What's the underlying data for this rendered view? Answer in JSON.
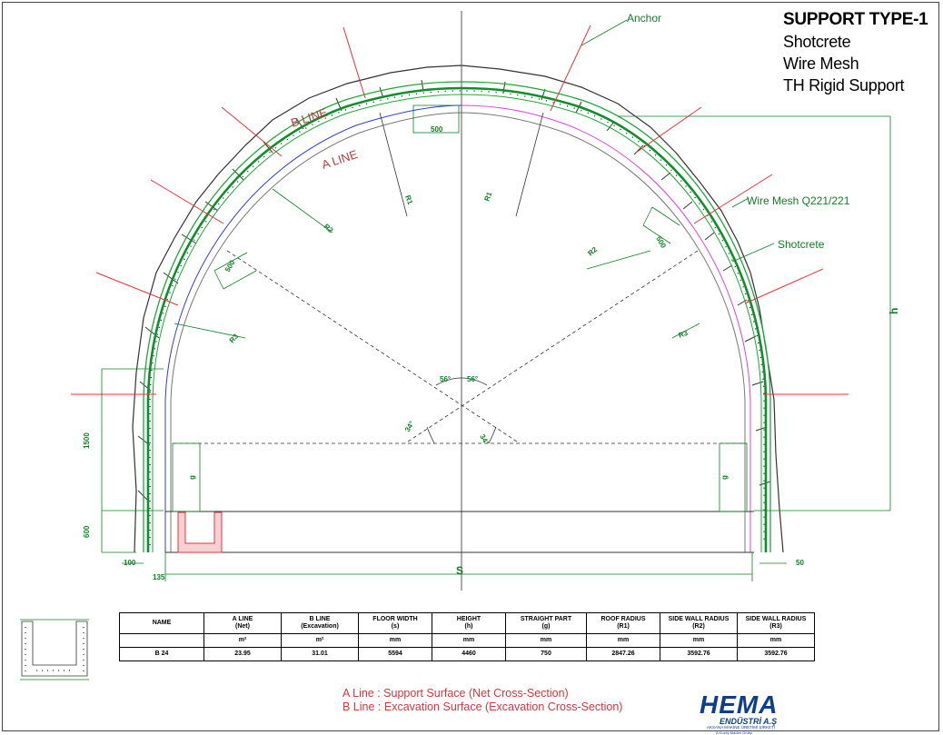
{
  "title": {
    "main": "SUPPORT TYPE-1",
    "lines": [
      "Shotcrete",
      "Wire Mesh",
      "TH Rigid Support"
    ]
  },
  "labels": {
    "anchor": "Anchor",
    "wire_mesh": "Wire Mesh Q221/221",
    "shotcrete": "Shotcrete",
    "a_line": "A LINE",
    "b_line": "B LINE"
  },
  "dimensions": {
    "d500_top": "500",
    "d500_left": "500",
    "d500_right": "500",
    "r1_left": "R1",
    "r1_right": "R1",
    "r2_left": "R2",
    "r2_right": "R2",
    "r3_left": "R3",
    "r3_right": "R3",
    "angle_56_left": "56°",
    "angle_56_right": "56°",
    "angle_34_left": "34°",
    "angle_34_right": "34°",
    "d1500": "1500",
    "d600": "600",
    "g_left": "g",
    "g_right": "g",
    "h": "h",
    "s": "S",
    "d100": "100",
    "d135": "135",
    "d50": "50"
  },
  "table": {
    "headers": [
      [
        "NAME",
        ""
      ],
      [
        "A LINE",
        "(Net)"
      ],
      [
        "B LINE",
        "(Excavation)"
      ],
      [
        "FLOOR WIDTH",
        "(s)"
      ],
      [
        "HEIGHT",
        "(h)"
      ],
      [
        "STRAIGHT PART",
        "(g)"
      ],
      [
        "ROOF RADIUS",
        "(R1)"
      ],
      [
        "SIDE WALL RADIUS",
        "(R2)"
      ],
      [
        "SIDE WALL RADIUS",
        "(R3)"
      ]
    ],
    "units": [
      "",
      "m²",
      "m²",
      "mm",
      "mm",
      "mm",
      "mm",
      "mm",
      "mm"
    ],
    "rows": [
      [
        "B 24",
        "23.95",
        "31.01",
        "5594",
        "4460",
        "750",
        "2847.26",
        "3592.76",
        "3592.76"
      ]
    ]
  },
  "legend": {
    "a": "A Line : Support Surface (Net Cross-Section)",
    "b": "B  Line : Excavation Surface (Excavation Cross-Section)"
  },
  "logo": {
    "brand": "HEMA",
    "tagline": "ENDÜSTRİ A.Ş",
    "sub1": "AKSANA MAKİNE ÜRETİMİ ŞİRKETİ",
    "sub2": "A Kuzey Maden Grubu"
  },
  "colors": {
    "anchor_red": "#e8333a",
    "a_line_blue": "#2f3bd6",
    "magenta": "#d846d8",
    "shotcrete_green": "#1fa63a",
    "mesh_green": "#0e8f2b",
    "dim_green": "#0f7f25",
    "b_line_label": "#b23a3a",
    "legend_red": "#d0383d"
  }
}
